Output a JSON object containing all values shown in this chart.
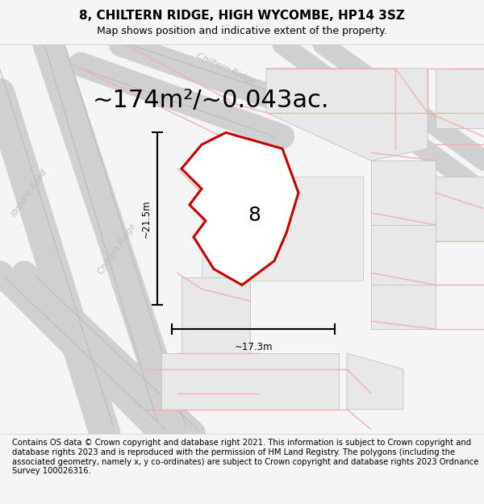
{
  "title": "8, CHILTERN RIDGE, HIGH WYCOMBE, HP14 3SZ",
  "subtitle": "Map shows position and indicative extent of the property.",
  "area_text": "~174m²/~0.043ac.",
  "dim_width": "~17.3m",
  "dim_height": "~21.5m",
  "plot_label": "8",
  "footer": "Contains OS data © Crown copyright and database right 2021. This information is subject to Crown copyright and database rights 2023 and is reproduced with the permission of HM Land Registry. The polygons (including the associated geometry, namely x, y co-ordinates) are subject to Crown copyright and database rights 2023 Ordnance Survey 100026316.",
  "bg_color": "#f5f5f5",
  "map_bg": "#ffffff",
  "plot_color": "#cc0000",
  "dim_line_color": "#000000",
  "road_pink": "#f0b0b0",
  "road_gray": "#d0d0d0",
  "block_fill": "#e8e8e8",
  "block_edge": "#c8c8c8",
  "street_label_color": "#bbbbbb",
  "title_fontsize": 11,
  "subtitle_fontsize": 9,
  "area_fontsize": 22,
  "label_fontsize": 18,
  "footer_fontsize": 7.2
}
